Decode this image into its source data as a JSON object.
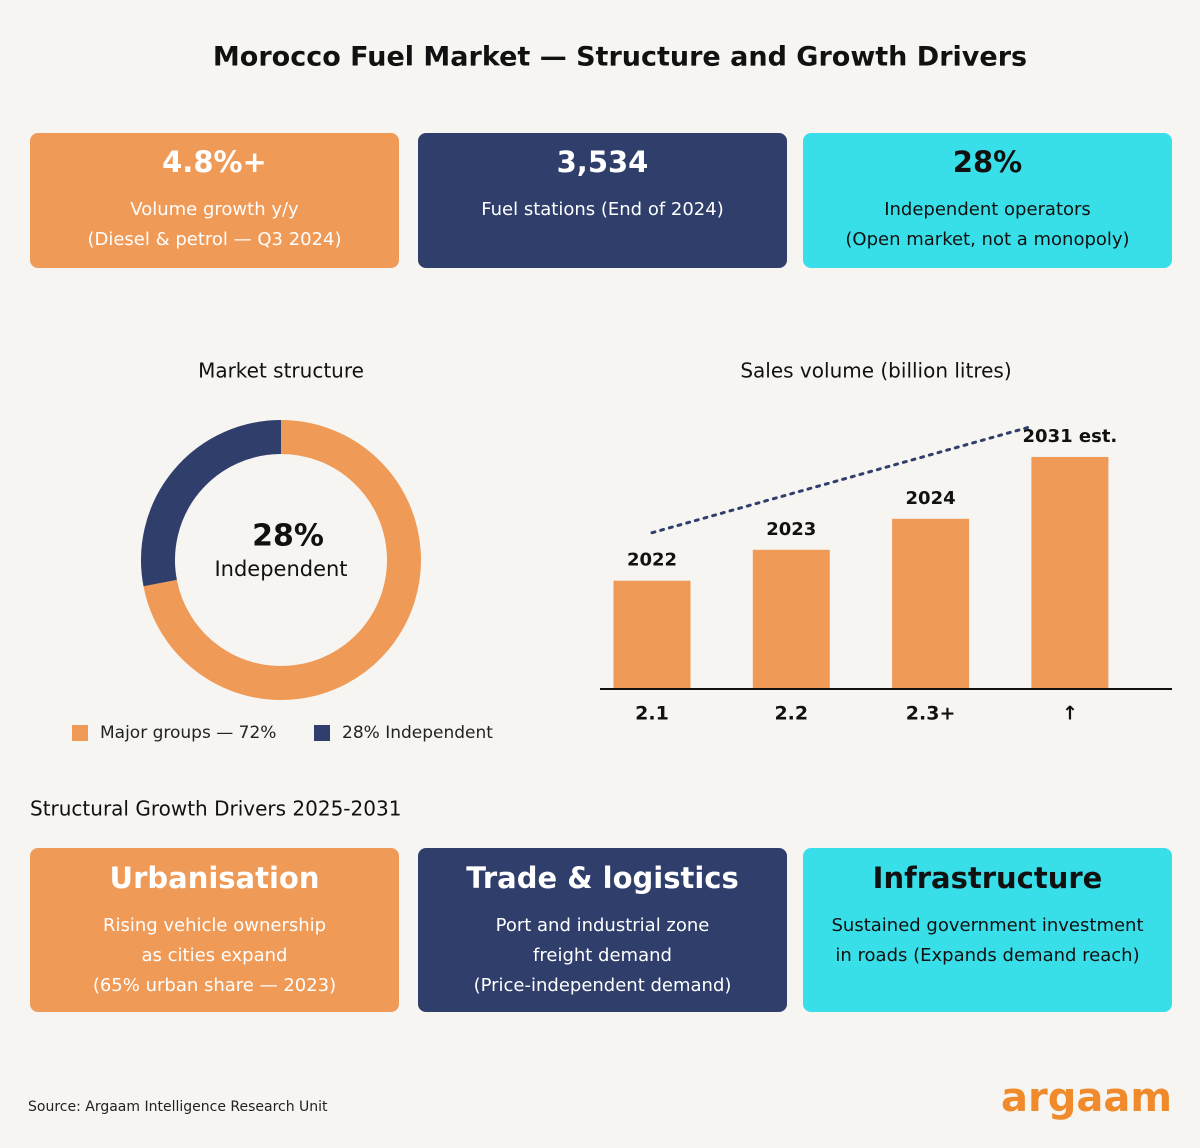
{
  "title": "Morocco Fuel Market — Structure and Growth Drivers",
  "kpis": [
    {
      "value": "4.8%+",
      "lines": [
        "Volume growth y/y",
        "(Diesel & petrol — Q3 2024)"
      ]
    },
    {
      "value": "3,534",
      "lines": [
        "Fuel stations (End of 2024)"
      ]
    },
    {
      "value": "28%",
      "lines": [
        "Independent operators",
        "(Open market, not a monopoly)"
      ]
    }
  ],
  "chart_data": [
    {
      "type": "pie",
      "title": "Market structure",
      "center_value": "28%",
      "center_label": "Independent",
      "categories": [
        "Major groups — 72%",
        "28% Independent"
      ],
      "values": [
        72,
        28
      ],
      "colors": [
        "#f09a57",
        "#2f3e6b"
      ]
    },
    {
      "type": "bar",
      "title": "Sales volume (billion litres)",
      "categories": [
        "2022",
        "2023",
        "2024",
        "2031 est."
      ],
      "values": [
        2.1,
        2.2,
        2.3,
        2.5
      ],
      "value_labels": [
        "2.1",
        "2.2",
        "2.3+",
        "↑"
      ],
      "color": "#f09a57",
      "ylim": [
        1.75,
        2.6
      ]
    }
  ],
  "drivers_title": "Structural Growth Drivers 2025-2031",
  "drivers": [
    {
      "title": "Urbanisation",
      "lines": [
        "Rising vehicle ownership",
        "as cities expand",
        "(65% urban share — 2023)"
      ]
    },
    {
      "title": "Trade & logistics",
      "lines": [
        "Port and industrial zone",
        "freight demand",
        "(Price-independent demand)"
      ]
    },
    {
      "title": "Infrastructure",
      "lines": [
        "Sustained government investment",
        "in roads (Expands demand reach)"
      ]
    }
  ],
  "source": "Source: Argaam Intelligence Research Unit",
  "logo": "argaam"
}
